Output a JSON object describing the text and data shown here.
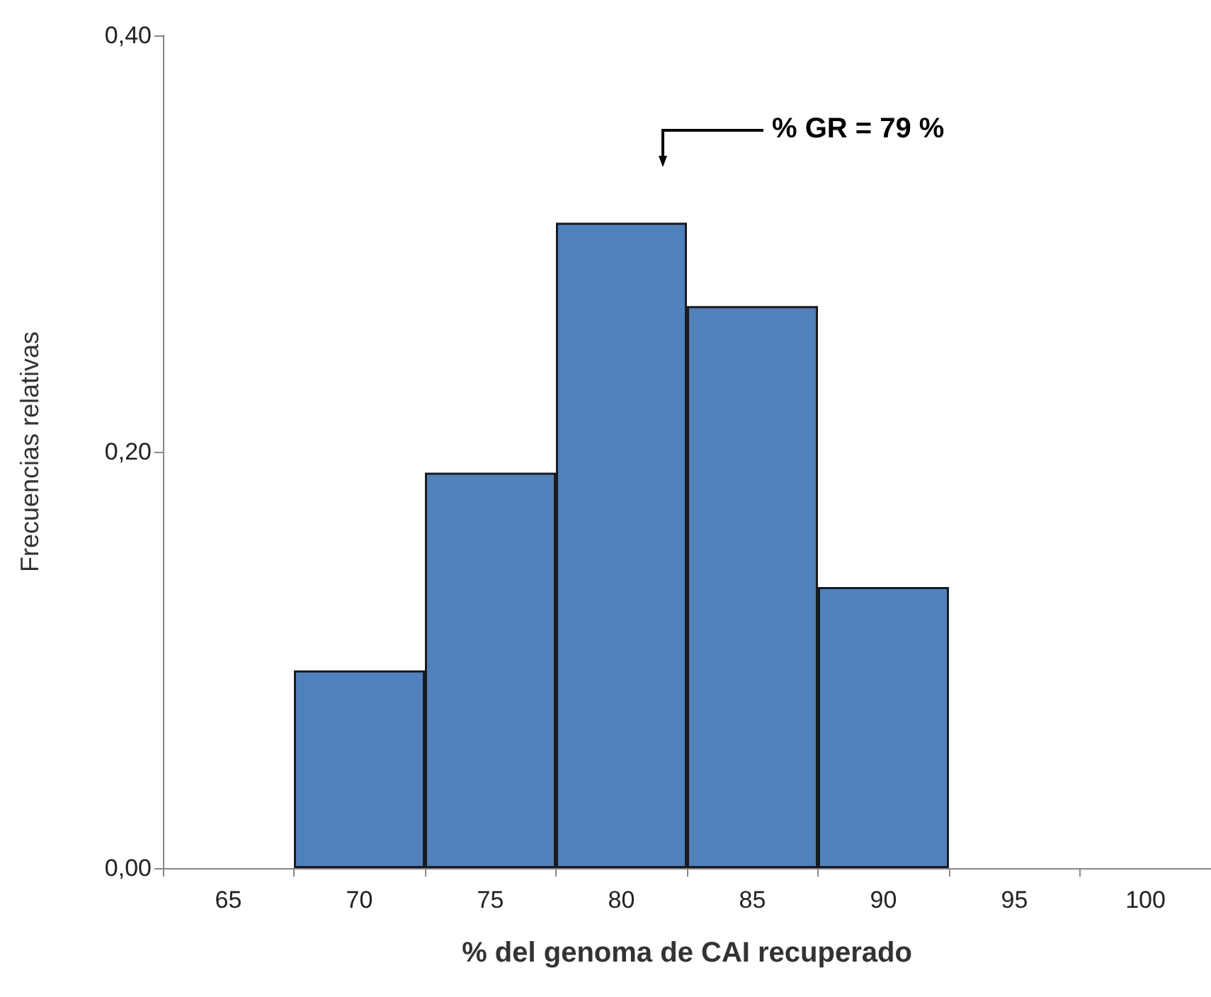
{
  "chart_data": {
    "type": "bar",
    "xlabel": "% del genoma de CAI recuperado",
    "ylabel": "Frecuencias relativas",
    "categories": [
      "65",
      "70",
      "75",
      "80",
      "85",
      "90",
      "95",
      "100"
    ],
    "values": [
      null,
      0.095,
      0.19,
      0.31,
      0.27,
      0.135,
      null,
      null
    ],
    "color": "#4f81bd",
    "ylim": [
      0,
      0.4
    ],
    "yticks": [
      {
        "value": 0,
        "label": "0,00"
      },
      {
        "value": 0.2,
        "label": "0,20"
      },
      {
        "value": 0.4,
        "label": "0,40"
      }
    ],
    "grid": false,
    "annotations": [
      "% GR = 79 %"
    ]
  }
}
